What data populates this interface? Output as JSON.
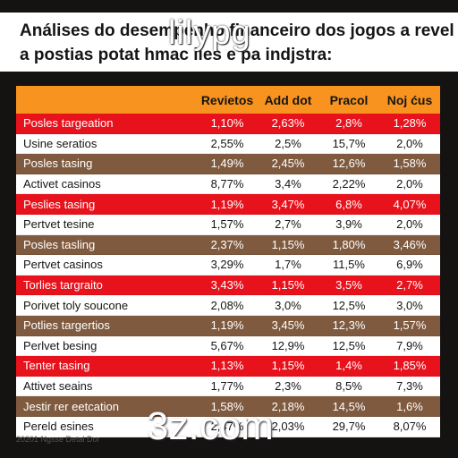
{
  "title": {
    "line1": "Análises do desempenho financeiro dos jogos a revel",
    "line2": "a postias potat hmac lies e pa indjstra:"
  },
  "watermark_top": "lilypg",
  "watermark_bottom": "3z.com",
  "footer_text": "20201 Ngsse Detal Dor",
  "table": {
    "headers": [
      "",
      "Revietos",
      "Add dot",
      "Pracol",
      "Noj ćus"
    ],
    "rows": [
      {
        "name": "Posles targeation",
        "values": [
          "1,10%",
          "2,63%",
          "2,8%",
          "1,28%"
        ],
        "color": "red"
      },
      {
        "name": "Usine seratios",
        "values": [
          "2,55%",
          "2,5%",
          "15,7%",
          "2,0%"
        ],
        "color": "white"
      },
      {
        "name": "Posles tasing",
        "values": [
          "1,49%",
          "2,45%",
          "12,6%",
          "1,58%"
        ],
        "color": "brown"
      },
      {
        "name": "Activet casinos",
        "values": [
          "8,77%",
          "3,4%",
          "2,22%",
          "2,0%"
        ],
        "color": "white"
      },
      {
        "name": "Peslies tasing",
        "values": [
          "1,19%",
          "3,47%",
          "6,8%",
          "4,07%"
        ],
        "color": "red"
      },
      {
        "name": "Pertvet tesine",
        "values": [
          "1,57%",
          "2,7%",
          "3,9%",
          "2,0%"
        ],
        "color": "white"
      },
      {
        "name": "Posles tasling",
        "values": [
          "2,37%",
          "1,15%",
          "1,80%",
          "3,46%"
        ],
        "color": "brown"
      },
      {
        "name": "Pertvet casinos",
        "values": [
          "3,29%",
          "1,7%",
          "11,5%",
          "6,9%"
        ],
        "color": "white"
      },
      {
        "name": "Torlies targraito",
        "values": [
          "3,43%",
          "1,15%",
          "3,5%",
          "2,7%"
        ],
        "color": "red"
      },
      {
        "name": "Porivet toly soucone",
        "values": [
          "2,08%",
          "3,0%",
          "12,5%",
          "3,0%"
        ],
        "color": "white"
      },
      {
        "name": "Potlies targertios",
        "values": [
          "1,19%",
          "3,45%",
          "12,3%",
          "1,57%"
        ],
        "color": "brown"
      },
      {
        "name": "Perlvet besing",
        "values": [
          "5,67%",
          "12,9%",
          "12,5%",
          "7,9%"
        ],
        "color": "white"
      },
      {
        "name": "Tenter tasing",
        "values": [
          "1,13%",
          "1,15%",
          "1,4%",
          "1,85%"
        ],
        "color": "red"
      },
      {
        "name": "Attivet seains",
        "values": [
          "1,77%",
          "2,3%",
          "8,5%",
          "7,3%"
        ],
        "color": "white"
      },
      {
        "name": "Jestir rer eetcation",
        "values": [
          "1,58%",
          "2,18%",
          "14,5%",
          "1,6%"
        ],
        "color": "brown"
      },
      {
        "name": "Pereld esines",
        "values": [
          "2,47%",
          "2,03%",
          "29,7%",
          "8,07%"
        ],
        "color": "white"
      }
    ]
  }
}
